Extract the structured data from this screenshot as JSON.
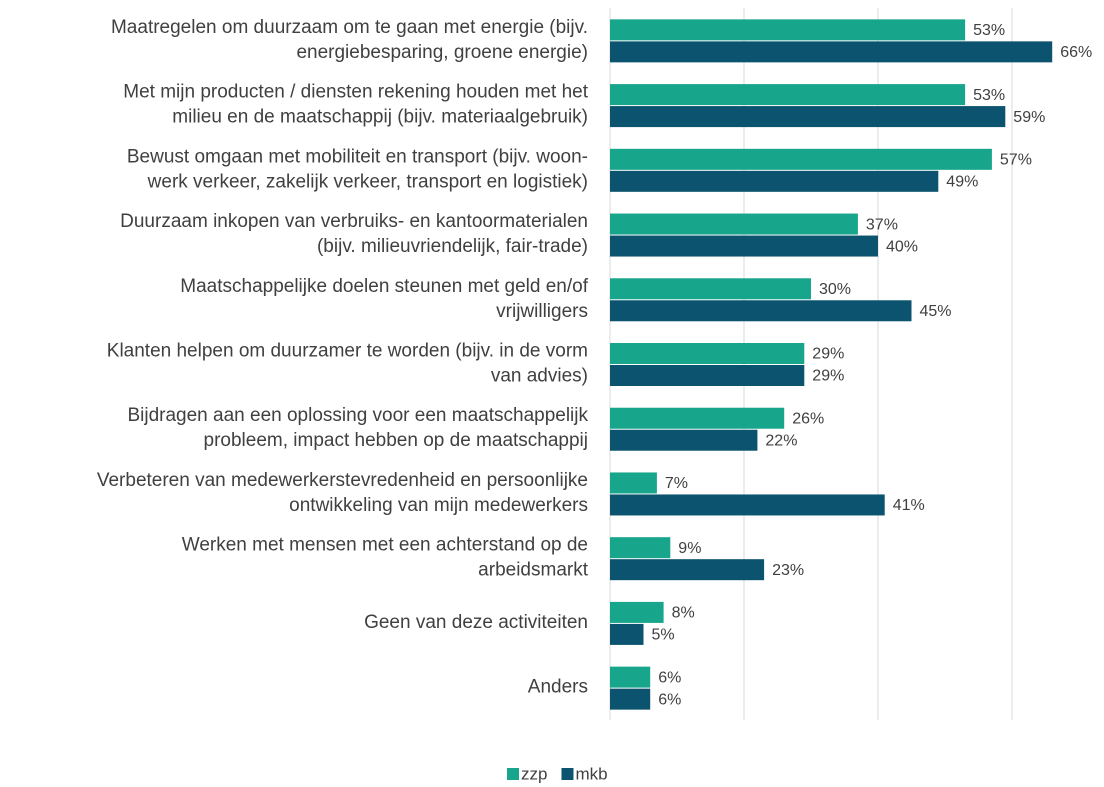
{
  "chart_data": {
    "type": "hbar",
    "categories": [
      [
        "Maatregelen om duurzaam om te gaan met energie (bijv.",
        "energiebesparing, groene energie)"
      ],
      [
        "Met mijn producten / diensten rekening houden met het",
        "milieu en de maatschappij (bijv. materiaalgebruik)"
      ],
      [
        "Bewust omgaan met mobiliteit en transport (bijv. woon-",
        "werk verkeer, zakelijk verkeer, transport en logistiek)"
      ],
      [
        "Duurzaam inkopen van verbruiks- en kantoormaterialen",
        "(bijv. milieuvriendelijk, fair-trade)"
      ],
      [
        "Maatschappelijke doelen steunen met geld en/of",
        "vrijwilligers"
      ],
      [
        "Klanten helpen om duurzamer te worden (bijv. in de vorm",
        "van advies)"
      ],
      [
        "Bijdragen aan een oplossing voor een maatschappelijk",
        "probleem, impact hebben op de maatschappij"
      ],
      [
        "Verbeteren van medewerkerstevredenheid en persoonlijke",
        "ontwikkeling van mijn medewerkers"
      ],
      [
        "Werken met mensen met een achterstand op de",
        "arbeidsmarkt"
      ],
      [
        "Geen van deze activiteiten"
      ],
      [
        "Anders"
      ]
    ],
    "series": [
      {
        "name": "zzp",
        "color": "#17a58b",
        "values": [
          53,
          53,
          57,
          37,
          30,
          29,
          26,
          7,
          9,
          8,
          6
        ],
        "value_labels": [
          "53%",
          "53%",
          "57%",
          "37%",
          "30%",
          "29%",
          "26%",
          "7%",
          "9%",
          "8%",
          "6%"
        ]
      },
      {
        "name": "mkb",
        "color": "#0b536e",
        "values": [
          66,
          59,
          49,
          40,
          45,
          29,
          22,
          41,
          23,
          5,
          6
        ],
        "value_labels": [
          "66%",
          "59%",
          "49%",
          "40%",
          "45%",
          "29%",
          "22%",
          "41%",
          "23%",
          "5%",
          "6%"
        ]
      }
    ],
    "xlim": [
      0,
      70
    ],
    "xticks": [
      0,
      20,
      40,
      60
    ],
    "grid": true,
    "legend": "bottom"
  }
}
